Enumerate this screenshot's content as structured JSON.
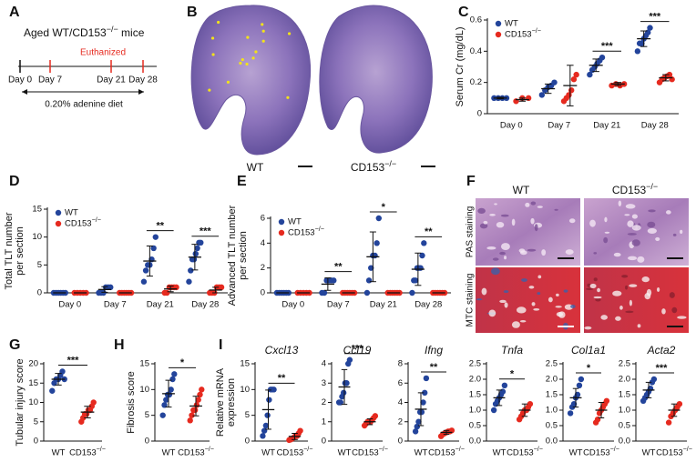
{
  "panel_labels": [
    "A",
    "B",
    "C",
    "D",
    "E",
    "F",
    "G",
    "H",
    "I"
  ],
  "timeline": {
    "title": "Aged WT/CD153−/− mice",
    "event": "Euthanized",
    "days": [
      "Day 0",
      "Day 7",
      "Day 21",
      "Day 28"
    ],
    "diet": "0.20% adenine diet"
  },
  "kidney_images": {
    "labels": [
      "WT",
      "CD153−/−"
    ]
  },
  "staining_images": {
    "columns": [
      "WT",
      "CD153−/−"
    ],
    "rows": [
      "PAS staining",
      "MTC staining"
    ]
  },
  "chart_data": [
    {
      "type": "strip",
      "ylabel": [
        "Serum Cr (mg/dL)"
      ],
      "categories": [
        "Day 0",
        "Day 7",
        "Day 21",
        "Day 28"
      ],
      "legend": "upper left",
      "series": [
        {
          "name": "WT",
          "color": "#23449b",
          "values": [
            [
              0.1,
              0.1,
              0.1,
              0.1
            ],
            [
              0.12,
              0.15,
              0.17,
              0.18,
              0.2
            ],
            [
              0.25,
              0.28,
              0.3,
              0.32,
              0.34,
              0.36
            ],
            [
              0.4,
              0.45,
              0.45,
              0.48,
              0.5,
              0.52,
              0.55
            ]
          ],
          "means": [
            0.1,
            0.16,
            0.31,
            0.48
          ],
          "sds": [
            0.005,
            0.03,
            0.04,
            0.05
          ]
        },
        {
          "name": "CD153−/−",
          "color": "#e62a1f",
          "values": [
            [
              0.08,
              0.1,
              0.1
            ],
            [
              0.08,
              0.1,
              0.12,
              0.15,
              0.22,
              0.25
            ],
            [
              0.18,
              0.19,
              0.18,
              0.19
            ],
            [
              0.2,
              0.22,
              0.23,
              0.24,
              0.25,
              0.22
            ]
          ],
          "means": [
            0.09,
            0.18,
            0.19,
            0.23
          ],
          "sds": [
            0.01,
            0.13,
            0.01,
            0.02
          ]
        }
      ],
      "ylim": [
        0,
        0.6
      ],
      "yticks": [
        0,
        0.2,
        0.4,
        0.6
      ],
      "significance": [
        null,
        null,
        "***",
        "***"
      ]
    },
    {
      "type": "strip",
      "ylabel": [
        "Total TLT number",
        "per section"
      ],
      "categories": [
        "Day 0",
        "Day 7",
        "Day 21",
        "Day 28"
      ],
      "legend": "upper left",
      "series": [
        {
          "name": "WT",
          "color": "#23449b",
          "values": [
            [
              0,
              0,
              0,
              0,
              0,
              0
            ],
            [
              0,
              0,
              0,
              1,
              1,
              1
            ],
            [
              2,
              4,
              5,
              5,
              6,
              8,
              10
            ],
            [
              2,
              4,
              6,
              6,
              7,
              8,
              9,
              9
            ]
          ],
          "means": [
            0,
            0.6,
            5.7,
            6.4
          ],
          "sds": [
            0,
            0.5,
            2.7,
            2.3
          ]
        },
        {
          "name": "CD153−/−",
          "color": "#e62a1f",
          "values": [
            [
              0,
              0,
              0,
              0,
              0
            ],
            [
              0,
              0,
              0,
              0,
              0,
              0
            ],
            [
              0,
              0,
              1,
              1,
              1,
              1
            ],
            [
              0,
              0,
              0,
              1,
              1,
              1
            ]
          ],
          "means": [
            0,
            0,
            0.7,
            0.5
          ],
          "sds": [
            0,
            0,
            0.5,
            0.5
          ]
        }
      ],
      "ylim": [
        0,
        15
      ],
      "yticks": [
        0,
        5,
        10,
        15
      ],
      "significance": [
        null,
        null,
        "**",
        "***"
      ]
    },
    {
      "type": "strip",
      "ylabel": [
        "Advanced TLT number",
        "per section"
      ],
      "categories": [
        "Day 0",
        "Day 7",
        "Day 21",
        "Day 28"
      ],
      "legend": "upper left",
      "series": [
        {
          "name": "WT",
          "color": "#23449b",
          "values": [
            [
              0,
              0,
              0,
              0,
              0,
              0
            ],
            [
              0,
              0,
              1,
              1,
              1,
              1
            ],
            [
              0,
              1,
              2,
              3,
              3,
              4,
              6
            ],
            [
              0,
              1,
              1,
              2,
              2,
              2,
              3,
              4
            ]
          ],
          "means": [
            0,
            0.7,
            2.9,
            1.9
          ],
          "sds": [
            0,
            0.5,
            2.0,
            1.3
          ]
        },
        {
          "name": "CD153−/−",
          "color": "#e62a1f",
          "values": [
            [
              0,
              0,
              0,
              0,
              0
            ],
            [
              0,
              0,
              0,
              0,
              0,
              0
            ],
            [
              0,
              0,
              0,
              0,
              0,
              0
            ],
            [
              0,
              0,
              0,
              0,
              0,
              0
            ]
          ],
          "means": [
            0,
            0,
            0,
            0
          ],
          "sds": [
            0,
            0,
            0,
            0
          ]
        }
      ],
      "ylim": [
        0,
        6
      ],
      "yticks": [
        0,
        2,
        4,
        6
      ],
      "significance": [
        null,
        "**",
        "*",
        "**"
      ]
    },
    {
      "type": "strip",
      "ylabel": [
        "Tubular injury score"
      ],
      "categories": [
        "WT",
        "CD153−/−"
      ],
      "colors": [
        "#23449b",
        "#e62a1f"
      ],
      "values": [
        [
          13,
          15,
          16,
          16,
          17,
          18,
          16
        ],
        [
          5,
          6,
          7,
          7,
          8,
          8,
          9,
          10
        ]
      ],
      "means": [
        16,
        7.5
      ],
      "sds": [
        1.5,
        1.5
      ],
      "ylim": [
        0,
        20
      ],
      "yticks": [
        0,
        5,
        10,
        15,
        20
      ],
      "significance": "***"
    },
    {
      "type": "strip",
      "ylabel": [
        "Fibrosis score"
      ],
      "categories": [
        "WT",
        "CD153−/−"
      ],
      "colors": [
        "#23449b",
        "#e62a1f"
      ],
      "values": [
        [
          5,
          7,
          8,
          9,
          9,
          10,
          12,
          13
        ],
        [
          4,
          5,
          6,
          6,
          7,
          8,
          9,
          10
        ]
      ],
      "means": [
        9.2,
        6.8
      ],
      "sds": [
        2.6,
        1.9
      ],
      "ylim": [
        0,
        15
      ],
      "yticks": [
        0,
        5,
        10,
        15
      ],
      "significance": "*"
    },
    {
      "type": "strip",
      "title": "Cxcl13",
      "ylabel": [
        "Relative mRNA",
        "expression"
      ],
      "categories": [
        "WT",
        "CD153−/−"
      ],
      "colors": [
        "#23449b",
        "#e62a1f"
      ],
      "values": [
        [
          1,
          2,
          3,
          5,
          8,
          10,
          10,
          10
        ],
        [
          0.2,
          0.3,
          0.5,
          0.7,
          1,
          1,
          1.5,
          2
        ]
      ],
      "means": [
        6.1,
        0.9
      ],
      "sds": [
        3.8,
        0.6
      ],
      "ylim": [
        0,
        15
      ],
      "yticks": [
        0,
        5,
        10,
        15
      ],
      "significance": "**"
    },
    {
      "type": "strip",
      "title": "Ccl19",
      "categories": [
        "WT",
        "CD153−/−"
      ],
      "colors": [
        "#23449b",
        "#e62a1f"
      ],
      "values": [
        [
          2,
          2,
          2.3,
          2.5,
          3,
          3,
          4,
          4.2
        ],
        [
          0.8,
          0.9,
          1,
          1,
          1,
          1.1,
          1.2,
          1.3
        ]
      ],
      "means": [
        2.8,
        1
      ],
      "sds": [
        0.9,
        0.15
      ],
      "ylim": [
        0,
        4
      ],
      "yticks": [
        0,
        1,
        2,
        3,
        4
      ],
      "significance": "***"
    },
    {
      "type": "strip",
      "title": "Ifng",
      "categories": [
        "WT",
        "CD153−/−"
      ],
      "colors": [
        "#23449b",
        "#e62a1f"
      ],
      "values": [
        [
          1,
          1.5,
          2,
          3,
          3,
          4,
          5,
          6.5
        ],
        [
          0.5,
          0.7,
          0.8,
          0.9,
          1,
          1,
          1.1
        ]
      ],
      "means": [
        3.3,
        0.9
      ],
      "sds": [
        1.7,
        0.2
      ],
      "ylim": [
        0,
        8
      ],
      "yticks": [
        0,
        2,
        4,
        6,
        8
      ],
      "significance": "**"
    },
    {
      "type": "strip",
      "title": "Tnfa",
      "categories": [
        "WT",
        "CD153−/−"
      ],
      "colors": [
        "#23449b",
        "#e62a1f"
      ],
      "values": [
        [
          1.0,
          1.2,
          1.3,
          1.4,
          1.5,
          1.6,
          1.8
        ],
        [
          0.7,
          0.8,
          0.9,
          1.0,
          1.0,
          1.1,
          1.2
        ]
      ],
      "means": [
        1.4,
        1.0
      ],
      "sds": [
        0.25,
        0.2
      ],
      "ylim": [
        0,
        2.5
      ],
      "yticks": [
        {
          "value": 0,
          "label": "0.0"
        },
        0.5,
        {
          "value": 1,
          "label": "1.0"
        },
        1.5,
        {
          "value": 2,
          "label": "2.0"
        },
        2.5
      ],
      "significance": "*"
    },
    {
      "type": "strip",
      "title": "Col1a1",
      "categories": [
        "WT",
        "CD153−/−"
      ],
      "colors": [
        "#23449b",
        "#e62a1f"
      ],
      "values": [
        [
          0.9,
          1.1,
          1.2,
          1.4,
          1.5,
          1.8,
          2.0
        ],
        [
          0.6,
          0.7,
          0.9,
          1.0,
          1.1,
          1.2,
          1.3
        ]
      ],
      "means": [
        1.4,
        1.0
      ],
      "sds": [
        0.3,
        0.25
      ],
      "ylim": [
        0,
        2.5
      ],
      "yticks": [
        {
          "value": 0,
          "label": "0.0"
        },
        0.5,
        {
          "value": 1,
          "label": "1.0"
        },
        1.5,
        {
          "value": 2,
          "label": "2.0"
        },
        2.5
      ],
      "significance": "*"
    },
    {
      "type": "strip",
      "title": "Acta2",
      "categories": [
        "WT",
        "CD153−/−"
      ],
      "colors": [
        "#23449b",
        "#e62a1f"
      ],
      "values": [
        [
          1.3,
          1.4,
          1.5,
          1.6,
          1.7,
          1.9,
          2.0
        ],
        [
          0.6,
          0.8,
          0.9,
          1.0,
          1.1,
          1.2
        ]
      ],
      "means": [
        1.65,
        1.0
      ],
      "sds": [
        0.25,
        0.2
      ],
      "ylim": [
        0,
        2.5
      ],
      "yticks": [
        {
          "value": 0,
          "label": "0.0"
        },
        0.5,
        {
          "value": 1,
          "label": "1.0"
        },
        1.5,
        {
          "value": 2,
          "label": "2.0"
        },
        2.5
      ],
      "significance": "***"
    }
  ]
}
